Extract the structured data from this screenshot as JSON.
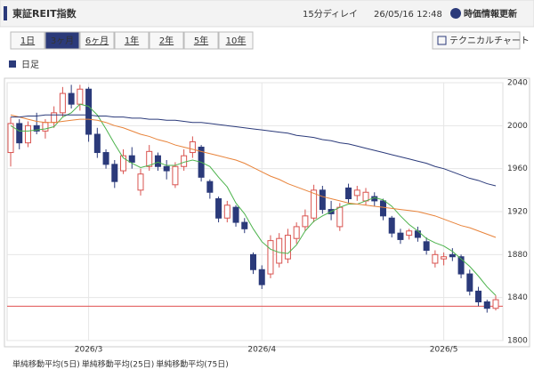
{
  "header": {
    "title": "東証REIT指数",
    "delay": "15分ディレイ",
    "timestamp": "26/05/16 12:48",
    "refresh_button": "時価情報更新"
  },
  "tabs": {
    "items": [
      "1日",
      "3ヶ月",
      "6ヶ月",
      "1年",
      "2年",
      "5年",
      "10年"
    ],
    "active_index": 1
  },
  "technical_button": "テクニカルチャート",
  "period_label": "日足",
  "chart_data": {
    "type": "candlestick",
    "categories": [
      null,
      null,
      null,
      null,
      null,
      null,
      null,
      null,
      null,
      "2026/3",
      null,
      null,
      null,
      null,
      null,
      null,
      null,
      null,
      null,
      null,
      null,
      null,
      null,
      null,
      null,
      null,
      null,
      null,
      null,
      "2026/4",
      null,
      null,
      null,
      null,
      null,
      null,
      null,
      null,
      null,
      null,
      null,
      null,
      null,
      null,
      null,
      null,
      null,
      null,
      null,
      null,
      "2026/5",
      null,
      null,
      null,
      null,
      null,
      null
    ],
    "open": [
      1975,
      2002,
      1984,
      2000,
      1995,
      2003,
      2012,
      2030,
      2020,
      2034,
      1992,
      1975,
      1964,
      1958,
      1972,
      1940,
      1962,
      1972,
      1962,
      1945,
      1962,
      1975,
      1980,
      1948,
      1932,
      1914,
      1924,
      1910,
      1880,
      1866,
      1862,
      1872,
      1876,
      1895,
      1906,
      1914,
      1940,
      1922,
      1906,
      1942,
      1935,
      1930,
      1934,
      1930,
      1914,
      1900,
      1898,
      1902,
      1892,
      1872,
      1876,
      1880,
      1878,
      1862,
      1846,
      1836,
      1830
    ],
    "high": [
      2008,
      2006,
      2004,
      2012,
      2006,
      2018,
      2036,
      2038,
      2038,
      2036,
      1998,
      1978,
      1968,
      1978,
      1980,
      1960,
      1982,
      1975,
      1968,
      1966,
      1978,
      1990,
      1982,
      1950,
      1934,
      1930,
      1926,
      1914,
      1882,
      1870,
      1898,
      1900,
      1904,
      1910,
      1922,
      1945,
      1944,
      1930,
      1928,
      1946,
      1944,
      1942,
      1938,
      1932,
      1916,
      1904,
      1904,
      1906,
      1896,
      1884,
      1882,
      1886,
      1880,
      1866,
      1850,
      1838,
      1842
    ],
    "low": [
      1962,
      1978,
      1980,
      1992,
      1988,
      1998,
      2008,
      2016,
      2014,
      1985,
      1970,
      1960,
      1942,
      1955,
      1960,
      1935,
      1958,
      1958,
      1950,
      1942,
      1958,
      1970,
      1948,
      1932,
      1910,
      1910,
      1906,
      1900,
      1862,
      1848,
      1858,
      1868,
      1872,
      1890,
      1902,
      1910,
      1918,
      1912,
      1902,
      1928,
      1930,
      1926,
      1925,
      1912,
      1896,
      1890,
      1894,
      1892,
      1880,
      1868,
      1870,
      1874,
      1858,
      1842,
      1832,
      1826,
      1828
    ],
    "close": [
      2002,
      1984,
      2000,
      1995,
      2003,
      2012,
      2030,
      2020,
      2034,
      1992,
      1975,
      1964,
      1948,
      1972,
      1966,
      1955,
      1976,
      1962,
      1958,
      1962,
      1972,
      1985,
      1952,
      1938,
      1914,
      1926,
      1910,
      1904,
      1866,
      1852,
      1893,
      1895,
      1898,
      1906,
      1916,
      1940,
      1922,
      1918,
      1924,
      1932,
      1940,
      1938,
      1930,
      1916,
      1900,
      1894,
      1902,
      1896,
      1884,
      1880,
      1878,
      1878,
      1862,
      1846,
      1836,
      1830,
      1838
    ],
    "up_color": "#d9534f",
    "down_color": "#2b3a7a",
    "series": [
      {
        "name": "単純移動平均(5日)",
        "color": "#4cb34c",
        "values": [
          2000,
          1995,
          1995,
          1996,
          1997,
          1999,
          2008,
          2012,
          2020,
          2018,
          2010,
          1997,
          1983,
          1970,
          1965,
          1961,
          1963,
          1966,
          1963,
          1963,
          1966,
          1968,
          1966,
          1962,
          1952,
          1943,
          1928,
          1918,
          1904,
          1892,
          1885,
          1882,
          1881,
          1889,
          1902,
          1911,
          1916,
          1920,
          1924,
          1927,
          1927,
          1930,
          1933,
          1931,
          1925,
          1916,
          1908,
          1902,
          1895,
          1891,
          1888,
          1883,
          1876,
          1869,
          1860,
          1850,
          1842
        ]
      },
      {
        "name": "単純移動平均(25日)",
        "color": "#e8833a",
        "values": [
          2010,
          2008,
          2006,
          2004,
          2003,
          2003,
          2004,
          2005,
          2006,
          2006,
          2005,
          2003,
          2000,
          1998,
          1995,
          1992,
          1990,
          1987,
          1985,
          1982,
          1980,
          1978,
          1976,
          1974,
          1972,
          1970,
          1968,
          1965,
          1961,
          1957,
          1953,
          1950,
          1946,
          1943,
          1940,
          1937,
          1934,
          1932,
          1930,
          1928,
          1927,
          1926,
          1925,
          1924,
          1923,
          1922,
          1921,
          1920,
          1918,
          1916,
          1913,
          1910,
          1907,
          1905,
          1902,
          1899,
          1896
        ]
      },
      {
        "name": "単純移動平均(75日)",
        "color": "#2b3a7a",
        "values": [
          2008,
          2008,
          2009,
          2009,
          2010,
          2010,
          2010,
          2010,
          2010,
          2010,
          2009,
          2009,
          2008,
          2008,
          2007,
          2007,
          2006,
          2006,
          2005,
          2005,
          2004,
          2003,
          2003,
          2002,
          2001,
          2000,
          1999,
          1998,
          1997,
          1996,
          1995,
          1994,
          1993,
          1991,
          1990,
          1989,
          1987,
          1986,
          1984,
          1983,
          1981,
          1979,
          1977,
          1975,
          1973,
          1971,
          1969,
          1967,
          1965,
          1962,
          1960,
          1957,
          1954,
          1951,
          1949,
          1946,
          1944
        ]
      }
    ],
    "price_line": 1832,
    "price_line_color": "#e05050",
    "ylim": [
      1800,
      2040
    ],
    "yticks": [
      1800,
      1840,
      1880,
      1920,
      1960,
      2000,
      2040
    ],
    "grid": true
  }
}
